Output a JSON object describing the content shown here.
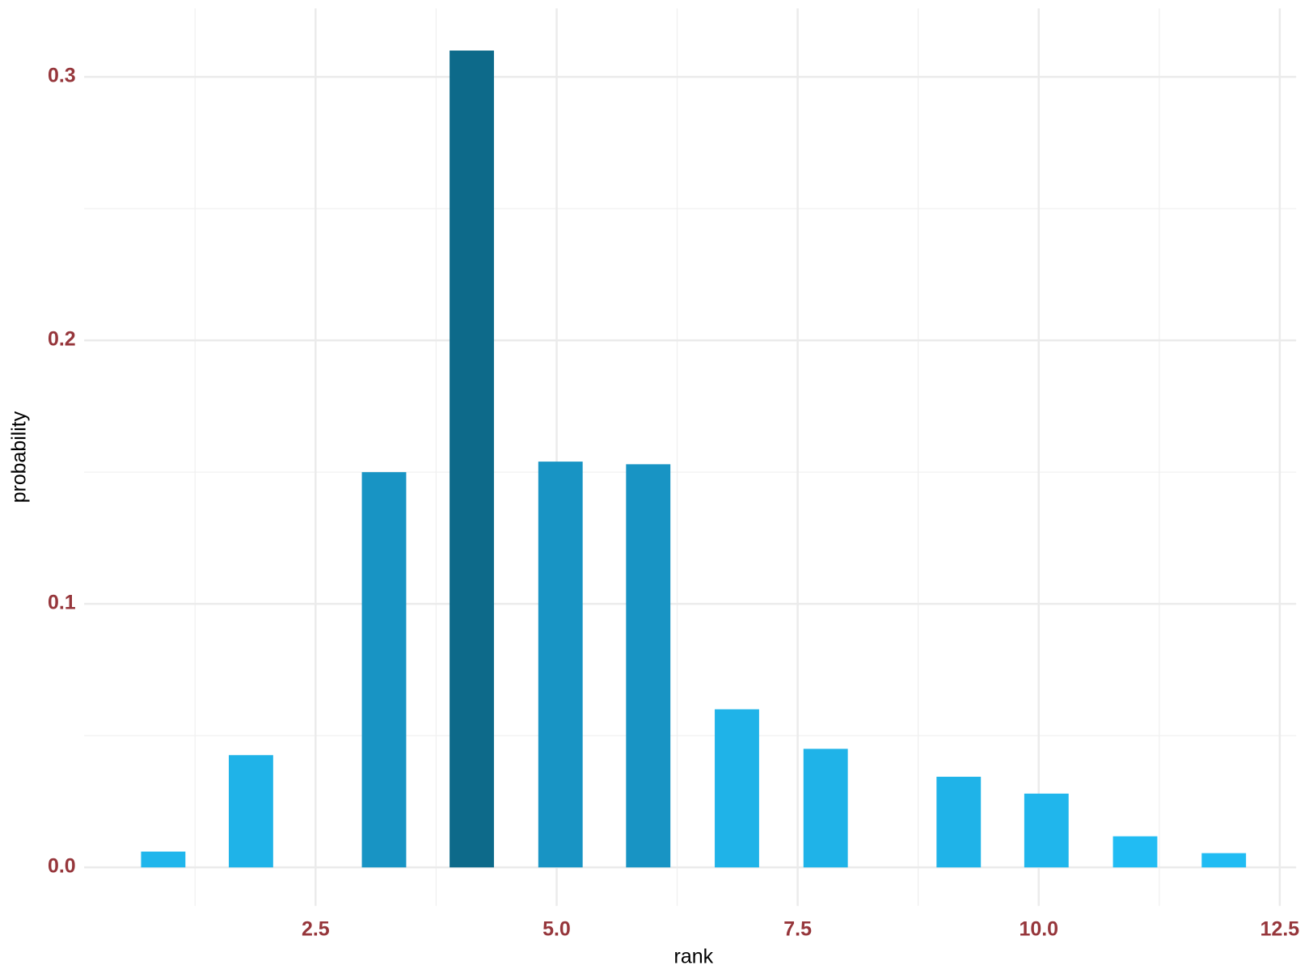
{
  "chart_data": {
    "type": "bar",
    "x_label": "rank",
    "y_label": "probability",
    "x": [
      0.92,
      1.83,
      3.21,
      4.12,
      5.04,
      5.95,
      6.87,
      7.79,
      9.17,
      10.08,
      11.0,
      11.92
    ],
    "values": [
      0.006,
      0.0426,
      0.15,
      0.31,
      0.154,
      0.153,
      0.06,
      0.045,
      0.0344,
      0.028,
      0.0118,
      0.0054
    ],
    "colors": [
      "#20b6ec",
      "#1fb3e8",
      "#1894c4",
      "#0d6a8a",
      "#1894c4",
      "#1894c4",
      "#1fb3e8",
      "#1fb3e8",
      "#1fb3e8",
      "#20b6ec",
      "#21bcf3",
      "#21bcf3"
    ],
    "bar_width": 0.46,
    "xlim": [
      0.1,
      12.67
    ],
    "ylim": [
      -0.0146,
      0.326
    ],
    "xticks": [
      {
        "value": 2.5,
        "label": "2.5"
      },
      {
        "value": 5,
        "label": "5.0"
      },
      {
        "value": 7.5,
        "label": "7.5"
      },
      {
        "value": 10,
        "label": "10.0"
      },
      {
        "value": 12.5,
        "label": "12.5"
      }
    ],
    "yticks": [
      {
        "value": 0,
        "label": "0.0"
      },
      0.1,
      0.2,
      0.3
    ],
    "x_minor_grid": [
      1.25,
      3.75,
      6.25,
      8.75,
      11.25
    ],
    "y_minor_grid": [
      0.05,
      0.15,
      0.25
    ],
    "grid": true
  }
}
